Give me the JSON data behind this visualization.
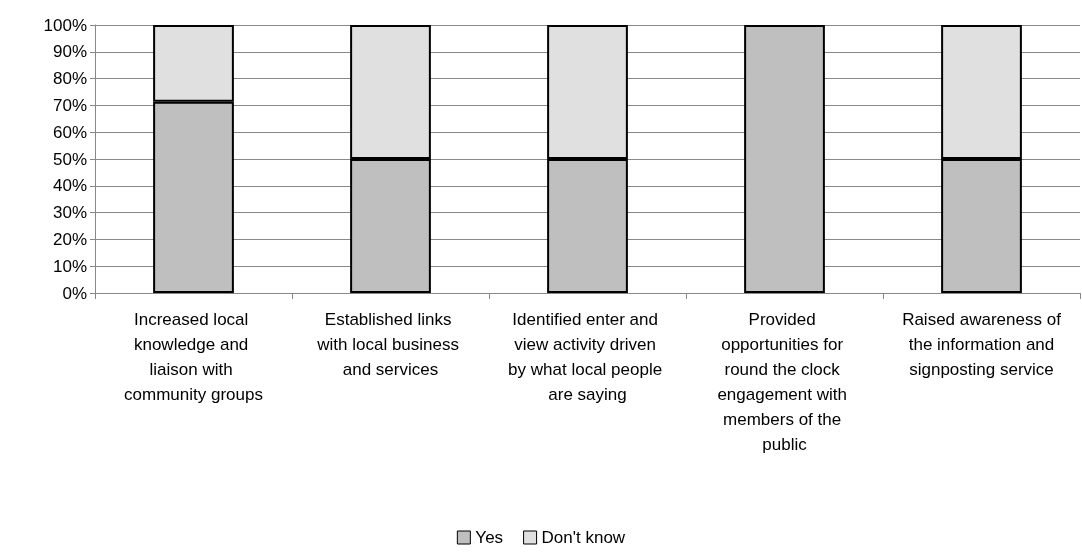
{
  "chart_data": {
    "type": "bar",
    "stacked": true,
    "categories": [
      "Increased local knowledge and liaison with community groups",
      "Established links with local business and services",
      "Identified enter and view activity driven by what local people are saying",
      "Provided opportunities for round the clock engagement with members of the public",
      "Raised awareness of the information and signposting service"
    ],
    "series": [
      {
        "name": "Yes",
        "color": "#bfbfbf",
        "values": [
          71.4,
          50,
          50,
          100,
          50
        ]
      },
      {
        "name": "Don't know",
        "color": "#e0e0e0",
        "values": [
          28.6,
          50,
          50,
          0,
          50
        ]
      }
    ],
    "ylim": [
      0,
      100
    ],
    "yticks": [
      {
        "value": 0,
        "label": "0%"
      },
      {
        "value": 10,
        "label": "10%"
      },
      {
        "value": 20,
        "label": "20%"
      },
      {
        "value": 30,
        "label": "30%"
      },
      {
        "value": 40,
        "label": "40%"
      },
      {
        "value": 50,
        "label": "50%"
      },
      {
        "value": 60,
        "label": "60%"
      },
      {
        "value": 70,
        "label": "70%"
      },
      {
        "value": 80,
        "label": "80%"
      },
      {
        "value": 90,
        "label": "90%"
      },
      {
        "value": 100,
        "label": "100%"
      }
    ],
    "grid": "y",
    "legend": "bottom"
  }
}
